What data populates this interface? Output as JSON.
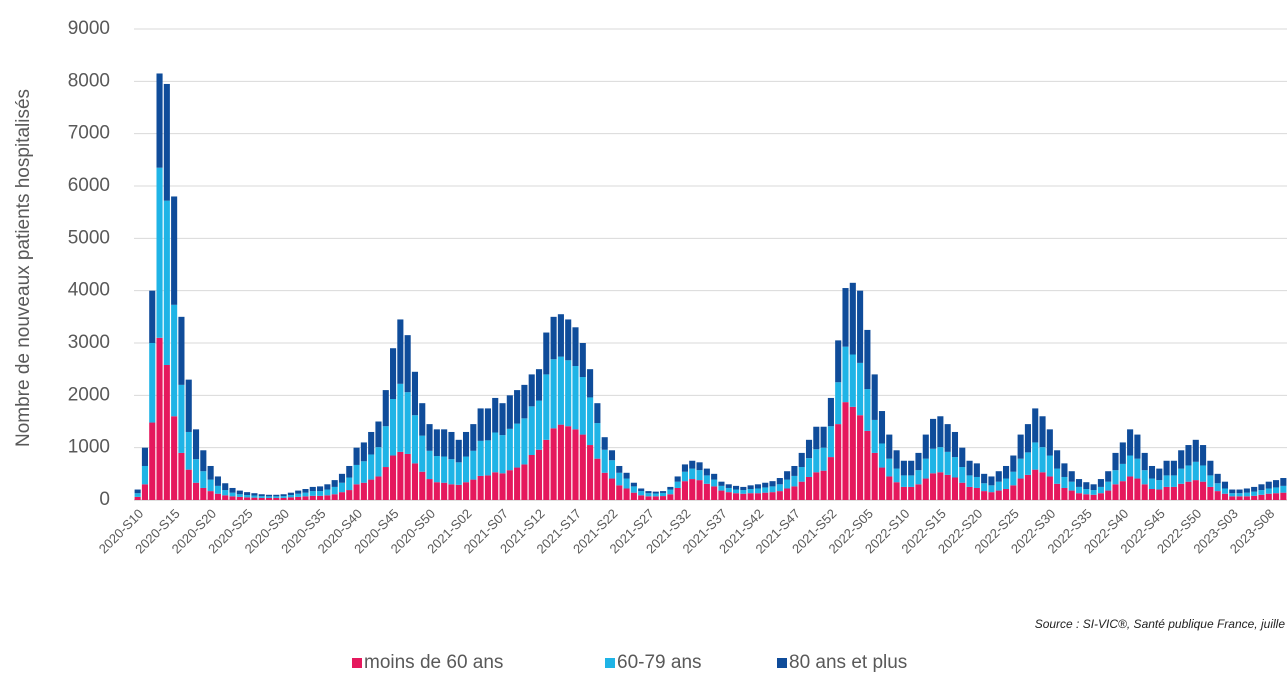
{
  "chart_data": {
    "type": "stacked_bar",
    "y_label": "Nombre de nouveaux patients hospitalisés",
    "source": "Source : SI-VIC®, Santé publique France, juille",
    "categories": [
      "2020-S10",
      null,
      null,
      null,
      null,
      "2020-S15",
      null,
      null,
      null,
      null,
      "2020-S20",
      null,
      null,
      null,
      null,
      "2020-S25",
      null,
      null,
      null,
      null,
      "2020-S30",
      null,
      null,
      null,
      null,
      "2020-S35",
      null,
      null,
      null,
      null,
      "2020-S40",
      null,
      null,
      null,
      null,
      "2020-S45",
      null,
      null,
      null,
      null,
      "2020-S50",
      null,
      null,
      null,
      null,
      "2021-S02",
      null,
      null,
      null,
      null,
      "2021-S07",
      null,
      null,
      null,
      null,
      "2021-S12",
      null,
      null,
      null,
      null,
      "2021-S17",
      null,
      null,
      null,
      null,
      "2021-S22",
      null,
      null,
      null,
      null,
      "2021-S27",
      null,
      null,
      null,
      null,
      "2021-S32",
      null,
      null,
      null,
      null,
      "2021-S37",
      null,
      null,
      null,
      null,
      "2021-S42",
      null,
      null,
      null,
      null,
      "2021-S47",
      null,
      null,
      null,
      null,
      "2021-S52",
      null,
      null,
      null,
      null,
      "2022-S05",
      null,
      null,
      null,
      null,
      "2022-S10",
      null,
      null,
      null,
      null,
      "2022-S15",
      null,
      null,
      null,
      null,
      "2022-S20",
      null,
      null,
      null,
      null,
      "2022-S25",
      null,
      null,
      null,
      null,
      "2022-S30",
      null,
      null,
      null,
      null,
      "2022-S35",
      null,
      null,
      null,
      null,
      "2022-S40",
      null,
      null,
      null,
      null,
      "2022-S45",
      null,
      null,
      null,
      null,
      "2022-S50",
      null,
      null,
      null,
      null,
      "2023-S03",
      null,
      null,
      null,
      null,
      "2023-S08",
      null,
      null
    ],
    "series": [
      {
        "name": "moins de 60 ans",
        "color": "#e5185d",
        "values": [
          60,
          300,
          1480,
          3100,
          2580,
          1600,
          900,
          580,
          330,
          230,
          170,
          120,
          90,
          70,
          60,
          50,
          45,
          40,
          40,
          40,
          40,
          50,
          60,
          70,
          80,
          80,
          90,
          110,
          150,
          190,
          300,
          330,
          390,
          450,
          630,
          850,
          920,
          880,
          700,
          540,
          400,
          340,
          330,
          300,
          290,
          340,
          390,
          460,
          470,
          530,
          510,
          570,
          620,
          680,
          860,
          960,
          1150,
          1370,
          1440,
          1410,
          1350,
          1250,
          1050,
          790,
          520,
          410,
          280,
          220,
          140,
          90,
          70,
          70,
          75,
          110,
          230,
          360,
          400,
          380,
          310,
          260,
          180,
          150,
          130,
          120,
          130,
          130,
          140,
          150,
          170,
          220,
          260,
          350,
          440,
          530,
          560,
          820,
          1450,
          1870,
          1780,
          1620,
          1320,
          900,
          620,
          450,
          340,
          250,
          250,
          300,
          410,
          510,
          530,
          480,
          430,
          330,
          250,
          230,
          170,
          150,
          180,
          210,
          280,
          410,
          480,
          580,
          530,
          450,
          310,
          230,
          180,
          130,
          110,
          100,
          130,
          180,
          300,
          360,
          450,
          410,
          300,
          210,
          200,
          250,
          250,
          310,
          350,
          380,
          350,
          250,
          170,
          120,
          70,
          70,
          70,
          80,
          100,
          120,
          130,
          140
        ]
      },
      {
        "name": "60-79 ans",
        "color": "#1fb4e6",
        "values": [
          70,
          350,
          1520,
          3250,
          3140,
          2130,
          1300,
          720,
          450,
          320,
          220,
          150,
          100,
          70,
          50,
          45,
          40,
          35,
          30,
          30,
          35,
          45,
          60,
          70,
          90,
          90,
          110,
          140,
          180,
          240,
          370,
          410,
          480,
          560,
          780,
          1080,
          1300,
          1180,
          920,
          690,
          540,
          500,
          500,
          480,
          430,
          490,
          550,
          670,
          670,
          760,
          730,
          790,
          840,
          880,
          930,
          940,
          1250,
          1320,
          1300,
          1260,
          1210,
          1100,
          910,
          680,
          440,
          350,
          240,
          190,
          120,
          80,
          60,
          55,
          60,
          90,
          120,
          180,
          200,
          190,
          160,
          130,
          90,
          80,
          70,
          70,
          80,
          90,
          100,
          110,
          130,
          170,
          200,
          280,
          360,
          440,
          440,
          590,
          800,
          1060,
          1000,
          1000,
          800,
          630,
          460,
          340,
          260,
          220,
          220,
          270,
          380,
          470,
          480,
          440,
          390,
          300,
          220,
          210,
          150,
          130,
          170,
          200,
          260,
          380,
          430,
          520,
          480,
          400,
          290,
          210,
          170,
          120,
          100,
          90,
          120,
          170,
          270,
          330,
          400,
          380,
          270,
          200,
          180,
          220,
          220,
          290,
          310,
          350,
          310,
          220,
          150,
          100,
          60,
          60,
          70,
          80,
          90,
          100,
          110,
          130
        ]
      },
      {
        "name": "80 ans et plus",
        "color": "#0f4c9a",
        "values": [
          70,
          350,
          1000,
          1800,
          2230,
          2070,
          1300,
          1000,
          570,
          400,
          260,
          180,
          130,
          90,
          70,
          55,
          45,
          35,
          30,
          30,
          35,
          45,
          60,
          70,
          80,
          90,
          100,
          130,
          170,
          220,
          330,
          360,
          430,
          490,
          690,
          970,
          1230,
          1090,
          830,
          620,
          510,
          510,
          520,
          520,
          430,
          470,
          510,
          620,
          610,
          660,
          610,
          640,
          640,
          640,
          610,
          600,
          800,
          810,
          810,
          780,
          740,
          650,
          540,
          380,
          240,
          190,
          130,
          110,
          70,
          50,
          40,
          35,
          35,
          50,
          100,
          140,
          150,
          150,
          130,
          110,
          80,
          70,
          70,
          60,
          70,
          80,
          90,
          100,
          120,
          160,
          190,
          270,
          350,
          430,
          400,
          540,
          800,
          1120,
          1370,
          1380,
          1130,
          870,
          620,
          460,
          350,
          280,
          280,
          330,
          460,
          570,
          590,
          530,
          480,
          370,
          280,
          260,
          180,
          170,
          200,
          240,
          310,
          460,
          540,
          650,
          590,
          500,
          350,
          260,
          200,
          150,
          130,
          110,
          150,
          200,
          330,
          410,
          500,
          460,
          330,
          240,
          220,
          280,
          280,
          350,
          390,
          420,
          390,
          280,
          180,
          130,
          70,
          70,
          80,
          90,
          110,
          130,
          140,
          150
        ]
      }
    ],
    "ylim": [
      0,
      9000
    ],
    "yticks": [
      0,
      1000,
      2000,
      3000,
      4000,
      5000,
      6000,
      7000,
      8000,
      9000
    ],
    "grid": true,
    "legend": "bottom"
  }
}
